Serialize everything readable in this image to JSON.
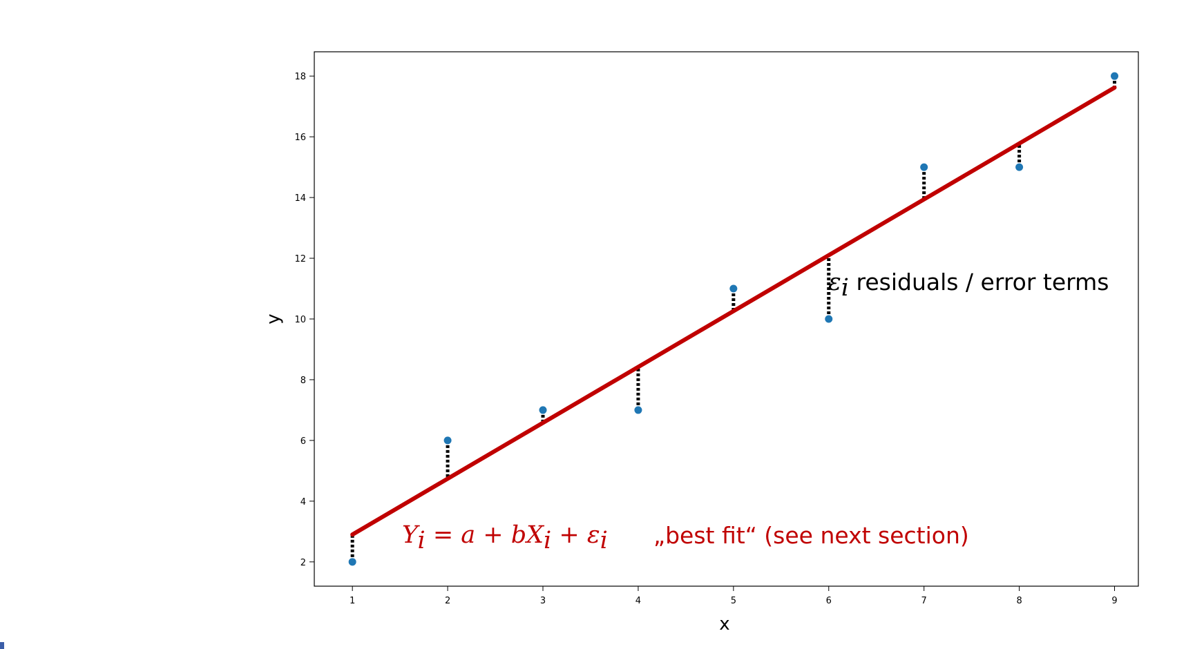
{
  "chart_data": {
    "type": "scatter",
    "x": [
      1,
      2,
      3,
      4,
      5,
      6,
      7,
      8,
      9
    ],
    "y": [
      2,
      6,
      7,
      7,
      11,
      10,
      15,
      15,
      18
    ],
    "fit_line": {
      "intercept": 1.06,
      "slope": 1.84,
      "color": "#c00000"
    },
    "residual_style": "black dotted",
    "point_color": "#1f77b4",
    "xlabel": "x",
    "ylabel": "y",
    "xlim": [
      0.6,
      9.25
    ],
    "ylim": [
      1.2,
      18.8
    ],
    "xticks": [
      "1",
      "2",
      "3",
      "4",
      "5",
      "6",
      "7",
      "8",
      "9"
    ],
    "yticks": [
      "2",
      "4",
      "6",
      "8",
      "10",
      "12",
      "14",
      "16",
      "18"
    ],
    "grid": false,
    "annotations": {
      "residuals_symbol": "ε",
      "residuals_subscript": "i",
      "residuals_text": " residuals / error terms",
      "equation": "Y",
      "equation_sub1": "i",
      "equation_mid": " = a + bX",
      "equation_sub2": "i",
      "equation_end": " + ε",
      "equation_sub3": "i",
      "best_fit": "„best fit“ (see next section)"
    }
  }
}
